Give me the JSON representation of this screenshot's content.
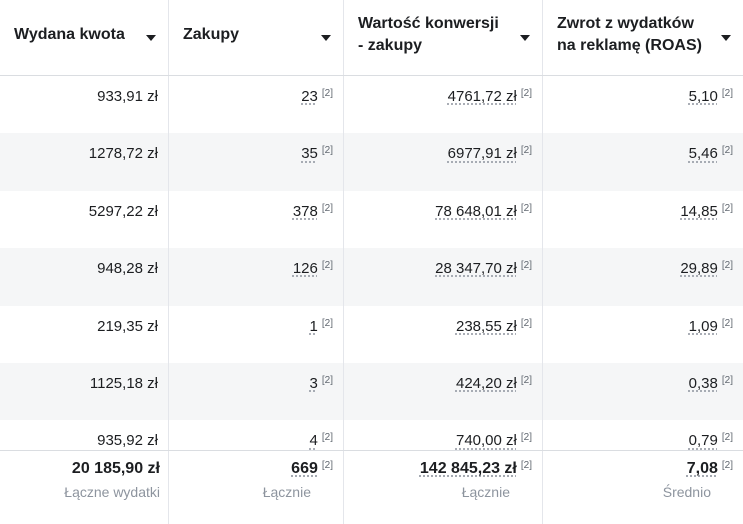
{
  "table": {
    "columns": [
      "Wydana kwota",
      "Zakupy",
      "Wartość konwersji - zakupy",
      "Zwrot z wydatków na reklamę (ROAS)"
    ],
    "note": "[2]",
    "rows": [
      [
        "933,91 zł",
        "23",
        "4761,72 zł",
        "5,10"
      ],
      [
        "1278,72 zł",
        "35",
        "6977,91 zł",
        "5,46"
      ],
      [
        "5297,22 zł",
        "378",
        "78 648,01 zł",
        "14,85"
      ],
      [
        "948,28 zł",
        "126",
        "28 347,70 zł",
        "29,89"
      ],
      [
        "219,35 zł",
        "1",
        "238,55 zł",
        "1,09"
      ],
      [
        "1125,18 zł",
        "3",
        "424,20 zł",
        "0,38"
      ],
      [
        "935,92 zł",
        "4",
        "740,00 zł",
        "0,79"
      ]
    ],
    "totals": [
      {
        "value": "20 185,90 zł",
        "label": "Łączne wydatki"
      },
      {
        "value": "669",
        "label": "Łącznie"
      },
      {
        "value": "142 845,23 zł",
        "label": "Łącznie"
      },
      {
        "value": "7,08",
        "label": "Średnio"
      }
    ]
  }
}
